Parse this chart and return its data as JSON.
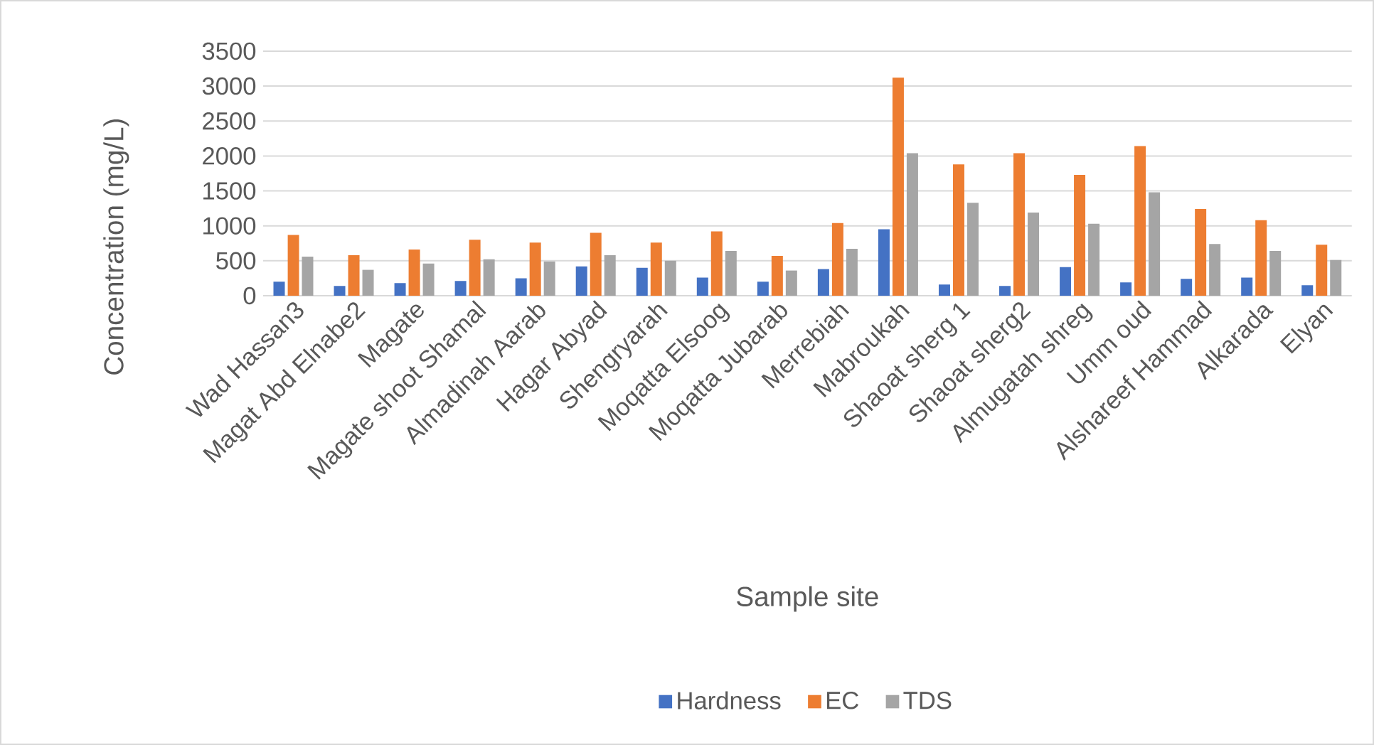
{
  "chart_data": {
    "type": "bar",
    "xlabel": "Sample site",
    "ylabel": "Concentration (mg/L)",
    "categories": [
      "Wad Hassan3",
      "Magat Abd Elnabe2",
      "Magate",
      "Magate shoot Shamal",
      "Almadinah Aarab",
      "Hagar Abyad",
      "Shengryarah",
      "Moqatta  Elsoog",
      "Moqatta  Jubarab",
      "Merrebiah",
      "Mabroukah",
      "Shaoat sherg 1",
      "Shaoat sherg2",
      "Almugatah shreg",
      "Umm oud",
      "Alshareef Hammad",
      "Alkarada",
      "Elyan"
    ],
    "series": [
      {
        "name": "Hardness",
        "color": "#4472c4",
        "values": [
          200,
          140,
          180,
          210,
          250,
          420,
          400,
          260,
          200,
          380,
          950,
          160,
          140,
          410,
          190,
          240,
          260,
          150
        ]
      },
      {
        "name": "EC",
        "color": "#ed7d31",
        "values": [
          870,
          580,
          660,
          800,
          760,
          900,
          760,
          920,
          570,
          1040,
          3120,
          1880,
          2040,
          1730,
          2140,
          1240,
          1080,
          730
        ]
      },
      {
        "name": "TDS",
        "color": "#a5a5a5",
        "values": [
          560,
          370,
          460,
          520,
          490,
          580,
          500,
          640,
          360,
          670,
          2040,
          1330,
          1190,
          1030,
          1480,
          740,
          640,
          510
        ]
      }
    ],
    "ylim": [
      0,
      3500
    ],
    "yticks": [
      0,
      500,
      1000,
      1500,
      2000,
      2500,
      3000,
      3500
    ],
    "grid": "y",
    "legend": "bottom"
  }
}
